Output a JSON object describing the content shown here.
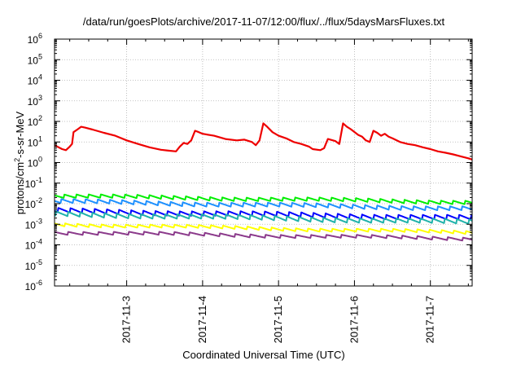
{
  "chart_data": {
    "type": "line",
    "title": "/data/run/goesPlots/archive/2017-11-07/12:00/flux/../flux/5daysMarsFluxes.txt",
    "xlabel": "Coordinated Universal Time (UTC)",
    "ylabel": {
      "pre": "protons/cm",
      "sup": "2",
      "post": "-s-sr-MeV"
    },
    "yscale": "log",
    "ylim_exp": [
      -6,
      6
    ],
    "y_ticks": [
      {
        "base": "10",
        "exp": "-6"
      },
      {
        "base": "10",
        "exp": "-5"
      },
      {
        "base": "10",
        "exp": "-4"
      },
      {
        "base": "10",
        "exp": "-3"
      },
      {
        "base": "10",
        "exp": "-2"
      },
      {
        "base": "10",
        "exp": "-1"
      },
      {
        "base": "10",
        "exp": "0"
      },
      {
        "base": "10",
        "exp": "1"
      },
      {
        "base": "10",
        "exp": "2"
      },
      {
        "base": "10",
        "exp": "3"
      },
      {
        "base": "10",
        "exp": "4"
      },
      {
        "base": "10",
        "exp": "5"
      },
      {
        "base": "10",
        "exp": "6"
      }
    ],
    "x_day_range": [
      2.05,
      7.55
    ],
    "x_ticks": [
      {
        "label": "2017-11-3",
        "day": 3
      },
      {
        "label": "2017-11-4",
        "day": 4
      },
      {
        "label": "2017-11-5",
        "day": 5
      },
      {
        "label": "2017-11-6",
        "day": 6
      },
      {
        "label": "2017-11-7",
        "day": 7
      }
    ],
    "grid": true,
    "series": [
      {
        "color": "#ee0000",
        "width": 2.2,
        "points": [
          [
            2.05,
            7
          ],
          [
            2.15,
            4.5
          ],
          [
            2.2,
            4
          ],
          [
            2.25,
            6
          ],
          [
            2.28,
            8
          ],
          [
            2.3,
            30
          ],
          [
            2.35,
            40
          ],
          [
            2.4,
            55
          ],
          [
            2.45,
            50
          ],
          [
            2.55,
            40
          ],
          [
            2.7,
            28
          ],
          [
            2.85,
            20
          ],
          [
            3.0,
            12
          ],
          [
            3.15,
            8
          ],
          [
            3.3,
            5.5
          ],
          [
            3.45,
            4.2
          ],
          [
            3.55,
            3.8
          ],
          [
            3.65,
            3.5
          ],
          [
            3.7,
            6
          ],
          [
            3.75,
            9
          ],
          [
            3.8,
            8
          ],
          [
            3.85,
            12
          ],
          [
            3.9,
            35
          ],
          [
            3.95,
            30
          ],
          [
            4.0,
            25
          ],
          [
            4.15,
            20
          ],
          [
            4.3,
            14
          ],
          [
            4.45,
            12
          ],
          [
            4.55,
            13
          ],
          [
            4.65,
            10
          ],
          [
            4.7,
            7
          ],
          [
            4.75,
            12
          ],
          [
            4.8,
            80
          ],
          [
            4.85,
            55
          ],
          [
            4.92,
            30
          ],
          [
            5.0,
            20
          ],
          [
            5.1,
            15
          ],
          [
            5.2,
            10
          ],
          [
            5.3,
            8
          ],
          [
            5.4,
            6
          ],
          [
            5.45,
            4.5
          ],
          [
            5.55,
            4
          ],
          [
            5.6,
            5
          ],
          [
            5.65,
            14
          ],
          [
            5.75,
            11
          ],
          [
            5.8,
            8
          ],
          [
            5.85,
            80
          ],
          [
            5.9,
            55
          ],
          [
            5.95,
            42
          ],
          [
            6.05,
            22
          ],
          [
            6.1,
            18
          ],
          [
            6.15,
            12
          ],
          [
            6.2,
            10
          ],
          [
            6.25,
            35
          ],
          [
            6.3,
            28
          ],
          [
            6.35,
            20
          ],
          [
            6.4,
            25
          ],
          [
            6.45,
            18
          ],
          [
            6.5,
            15
          ],
          [
            6.6,
            10
          ],
          [
            6.7,
            8
          ],
          [
            6.8,
            7
          ],
          [
            6.9,
            5.5
          ],
          [
            7.0,
            4.5
          ],
          [
            7.1,
            3.5
          ],
          [
            7.2,
            3
          ],
          [
            7.3,
            2.5
          ],
          [
            7.4,
            2
          ],
          [
            7.5,
            1.6
          ],
          [
            7.55,
            1.4
          ]
        ]
      },
      {
        "color": "#00ee00",
        "width": 2.0,
        "base": 0.024,
        "amp": 0.35,
        "trend": -0.3,
        "period": 0.16
      },
      {
        "color": "#1e90ff",
        "width": 2.0,
        "base": 0.013,
        "amp": 0.4,
        "trend": -0.35,
        "period": 0.16
      },
      {
        "color": "#0000ff",
        "width": 2.0,
        "base": 0.0045,
        "amp": 0.45,
        "trend": -0.35,
        "period": 0.16
      },
      {
        "color": "#20b2aa",
        "width": 2.0,
        "base": 0.0032,
        "amp": 0.45,
        "trend": -0.4,
        "period": 0.16
      },
      {
        "color": "#ffff00",
        "width": 2.0,
        "base": 0.001,
        "amp": 0.3,
        "trend": -0.4,
        "period": 0.16
      },
      {
        "color": "#8b3a8b",
        "width": 2.0,
        "base": 0.0004,
        "amp": 0.3,
        "trend": -0.3,
        "period": 0.2
      }
    ]
  }
}
